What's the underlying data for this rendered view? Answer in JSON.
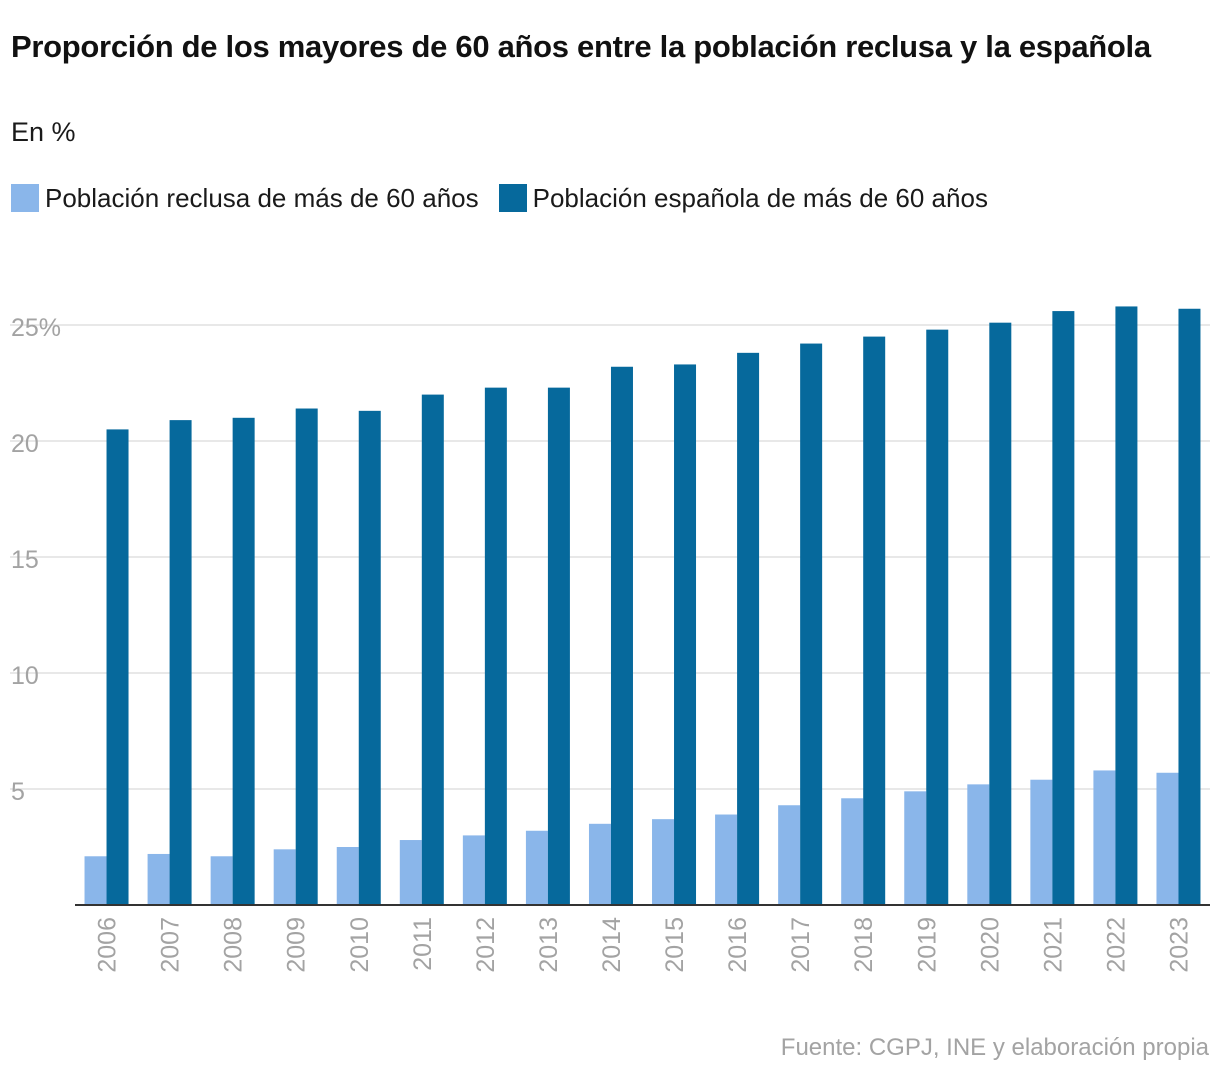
{
  "chart_data": {
    "type": "bar",
    "title": "Proporción de los mayores de 60 años entre la población reclusa y la española",
    "subtitle": "En %",
    "categories": [
      "2006",
      "2007",
      "2008",
      "2009",
      "2010",
      "2011",
      "2012",
      "2013",
      "2014",
      "2015",
      "2016",
      "2017",
      "2018",
      "2019",
      "2020",
      "2021",
      "2022",
      "2023"
    ],
    "series": [
      {
        "name": "Población reclusa de más de 60 años",
        "color": "#8ab6ea",
        "values": [
          2.1,
          2.2,
          2.1,
          2.4,
          2.5,
          2.8,
          3.0,
          3.2,
          3.5,
          3.7,
          3.9,
          4.3,
          4.6,
          4.9,
          5.2,
          5.4,
          5.8,
          5.7
        ]
      },
      {
        "name": "Población española de más de 60 años",
        "color": "#06699c",
        "values": [
          20.5,
          20.9,
          21.0,
          21.4,
          21.3,
          22.0,
          22.3,
          22.3,
          23.2,
          23.3,
          23.8,
          24.2,
          24.5,
          24.8,
          25.1,
          25.6,
          25.8,
          25.7
        ]
      }
    ],
    "yticks": [
      {
        "value": 5,
        "label": "5"
      },
      {
        "value": 10,
        "label": "10"
      },
      {
        "value": 15,
        "label": "15"
      },
      {
        "value": 20,
        "label": "20"
      },
      {
        "value": 25,
        "label": "25%"
      }
    ],
    "ylim": [
      0,
      25
    ],
    "grid": true,
    "legend_position": "top-left",
    "xlabel": "",
    "ylabel": "",
    "source": "Fuente: CGPJ, INE y elaboración propia"
  }
}
